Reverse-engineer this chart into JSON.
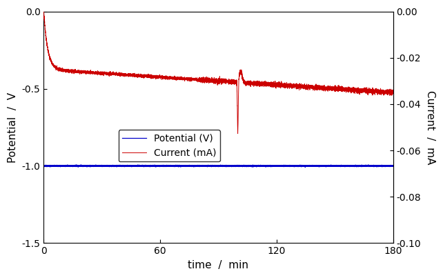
{
  "title": "",
  "xlabel": "time  /  min",
  "ylabel_left": "Potential  /  V",
  "ylabel_right": "Current  /  mA",
  "xlim": [
    0,
    180
  ],
  "ylim_left": [
    -1.5,
    0.0
  ],
  "ylim_right": [
    -0.1,
    0.0
  ],
  "xticks": [
    0,
    60,
    120,
    180
  ],
  "xtick_labels": [
    "0",
    "60",
    "120",
    "180"
  ],
  "yticks_left": [
    0.0,
    -0.5,
    -1.0,
    -1.5
  ],
  "ytick_labels_left": [
    "0.0",
    "-0.5",
    "-1.0",
    "-1.5"
  ],
  "yticks_right": [
    0.0,
    -0.02,
    -0.04,
    -0.06,
    -0.08,
    -0.1
  ],
  "ytick_labels_right": [
    "0.00",
    "-0.02",
    "-0.04",
    "-0.06",
    "-0.08",
    "-0.10"
  ],
  "potential_color": "#0000cc",
  "current_color": "#cc0000",
  "potential_label": "Potential (V)",
  "current_label": "Current (mA)",
  "potential_value": -1.0,
  "noise_amplitude_potential": 0.002,
  "noise_amplitude_current": 0.0003,
  "figsize": [
    6.42,
    4.03
  ],
  "dpi": 100
}
